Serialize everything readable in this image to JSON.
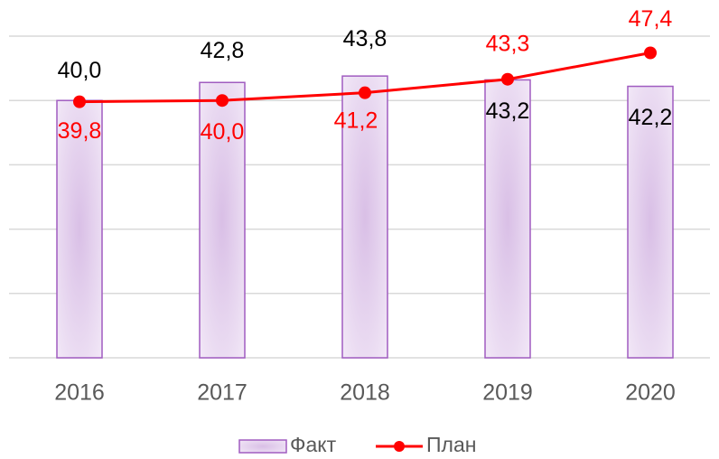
{
  "chart_data": {
    "type": "bar_line",
    "categories": [
      "2016",
      "2017",
      "2018",
      "2019",
      "2020"
    ],
    "series": [
      {
        "name": "Факт",
        "type": "bar",
        "color": "#a05cc0",
        "values": [
          40.0,
          42.8,
          43.8,
          43.2,
          42.2
        ],
        "value_labels": [
          "40,0",
          "42,8",
          "43,8",
          "43,2",
          "42,2"
        ],
        "label_color": "#000000"
      },
      {
        "name": "План",
        "type": "line",
        "color": "#ff0000",
        "values": [
          39.8,
          40.0,
          41.2,
          43.3,
          47.4
        ],
        "value_labels": [
          "39,8",
          "40,0",
          "41,2",
          "43,3",
          "47,4"
        ],
        "label_color": "#ff0000"
      }
    ],
    "ylim": [
      0,
      50
    ],
    "yticks": [
      0,
      10,
      20,
      30,
      40,
      50
    ],
    "grid": true,
    "legend": "bottom"
  }
}
